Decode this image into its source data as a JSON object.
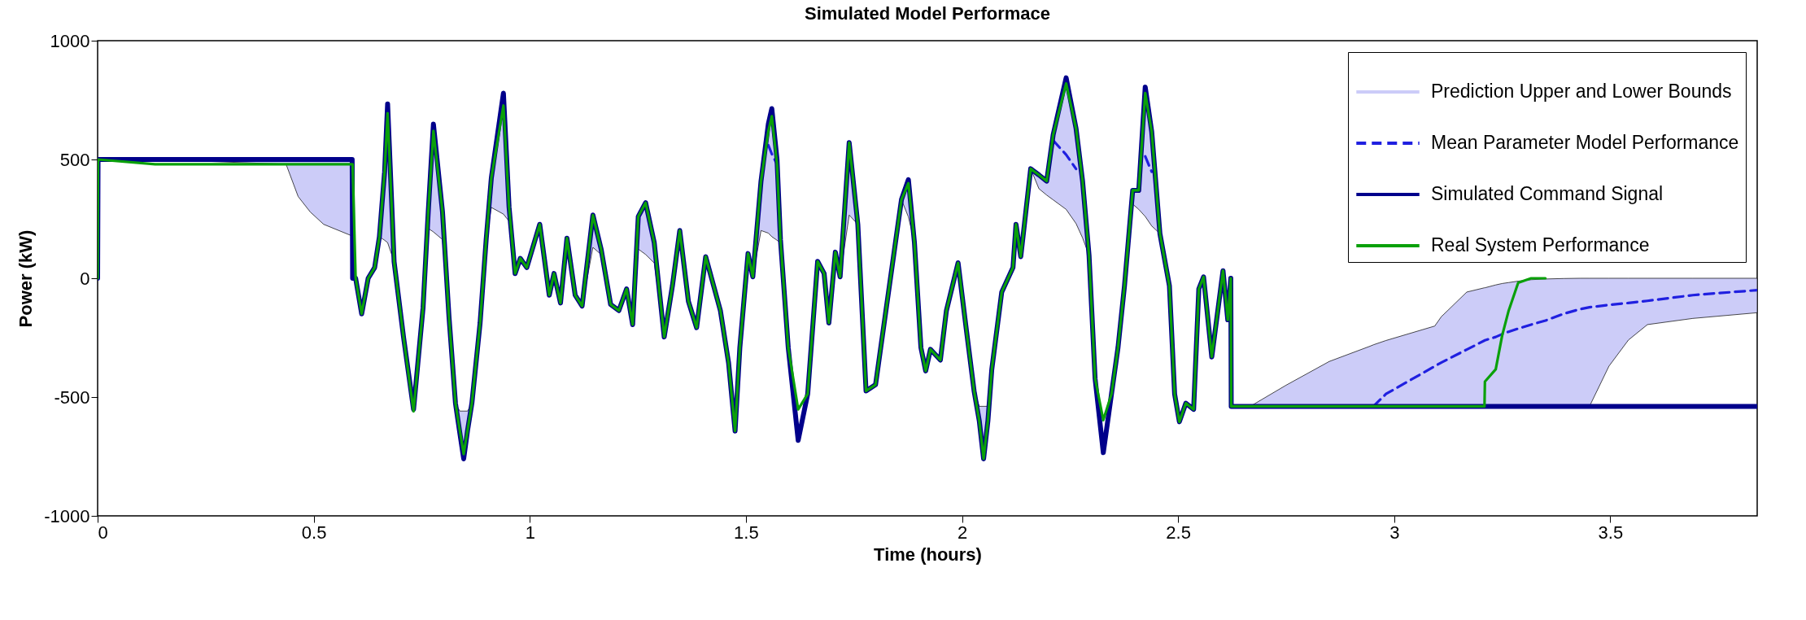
{
  "chart_data": {
    "type": "line",
    "title": "Simulated Model Performace",
    "xlabel": "Time (hours)",
    "ylabel": "Power (kW)",
    "x": [
      0,
      0.001,
      0.133,
      0.436,
      0.464,
      0.492,
      0.523,
      0.589,
      0.59,
      0.597,
      0.611,
      0.626,
      0.641,
      0.652,
      0.664,
      0.671,
      0.686,
      0.708,
      0.731,
      0.753,
      0.765,
      0.777,
      0.798,
      0.813,
      0.828,
      0.838,
      0.847,
      0.856,
      0.866,
      0.885,
      0.899,
      0.911,
      0.939,
      0.952,
      0.966,
      0.978,
      0.993,
      1.023,
      1.045,
      1.056,
      1.071,
      1.086,
      1.105,
      1.121,
      1.146,
      1.165,
      1.187,
      1.206,
      1.224,
      1.238,
      1.251,
      1.268,
      1.288,
      1.311,
      1.33,
      1.347,
      1.367,
      1.386,
      1.407,
      1.441,
      1.46,
      1.475,
      1.486,
      1.505,
      1.516,
      1.535,
      1.552,
      1.56,
      1.572,
      1.58,
      1.598,
      1.621,
      1.643,
      1.666,
      1.681,
      1.692,
      1.707,
      1.718,
      1.739,
      1.759,
      1.778,
      1.8,
      1.822,
      1.86,
      1.876,
      1.89,
      1.905,
      1.916,
      1.927,
      1.95,
      1.964,
      1.991,
      2.009,
      2.028,
      2.04,
      2.05,
      2.06,
      2.069,
      2.092,
      2.118,
      2.125,
      2.136,
      2.159,
      2.178,
      2.196,
      2.211,
      2.241,
      2.264,
      2.279,
      2.294,
      2.308,
      2.327,
      2.346,
      2.361,
      2.376,
      2.395,
      2.409,
      2.424,
      2.439,
      2.458,
      2.48,
      2.492,
      2.503,
      2.518,
      2.536,
      2.548,
      2.559,
      2.578,
      2.604,
      2.615,
      2.622,
      2.623,
      2.667,
      2.75,
      2.85,
      2.944,
      2.952,
      2.981,
      3.094,
      3.109,
      3.168,
      3.209,
      3.21,
      3.235,
      3.25,
      3.265,
      3.287,
      3.317,
      3.35,
      3.393,
      3.43,
      3.452,
      3.497,
      3.542,
      3.586,
      3.691,
      3.84
    ],
    "series": [
      {
        "name": "Prediction Upper and Lower Bounds",
        "type": "area",
        "color": "#ccccf8",
        "values": [
          null,
          null,
          null,
          null,
          null,
          null,
          null,
          null,
          null,
          null,
          null,
          null,
          null,
          null,
          null,
          null,
          null,
          null,
          null,
          null,
          null,
          null,
          null,
          null,
          null,
          null,
          null,
          null,
          null,
          null,
          null,
          null,
          null,
          null,
          null,
          null,
          null,
          null,
          null,
          null,
          null,
          null,
          null,
          null,
          null,
          null,
          null,
          null,
          null,
          null,
          null,
          null,
          null,
          null,
          null,
          null,
          null,
          null,
          null,
          null,
          null,
          null,
          null,
          null,
          null,
          null,
          null,
          null,
          null,
          null,
          null,
          null,
          null,
          null,
          null,
          null,
          null,
          null,
          null,
          null,
          null,
          null,
          null,
          null,
          null,
          null,
          null,
          null,
          null,
          null,
          null,
          null,
          null,
          null,
          null,
          null,
          null,
          null,
          null,
          null,
          null,
          null,
          null,
          null,
          null,
          null,
          null,
          null,
          null,
          null,
          null,
          null,
          null,
          null,
          null,
          null,
          null,
          null,
          null,
          null,
          null,
          null,
          null,
          null,
          null,
          null,
          null,
          null,
          null,
          null,
          null,
          null,
          null,
          null,
          null,
          null,
          null,
          null,
          null,
          null,
          null,
          null,
          null,
          null,
          null,
          null,
          null,
          null,
          null,
          null,
          null,
          null,
          null,
          null,
          null,
          null,
          null
        ],
        "lower": [
          0,
          500,
          500,
          480,
          344,
          279,
          227,
          178,
          0,
          0,
          -150,
          0,
          45,
          175,
          160,
          150,
          70,
          -250,
          -552,
          -124,
          210,
          195,
          163,
          -162,
          -526,
          -650,
          -760,
          -640,
          -526,
          -188,
          162,
          298,
          270,
          240,
          20,
          84,
          45,
          227,
          -71,
          20,
          -104,
          169,
          -71,
          -117,
          130,
          100,
          -110,
          -136,
          -45,
          -195,
          123,
          100,
          64,
          -247,
          -32,
          201,
          -97,
          -208,
          91,
          -136,
          -357,
          -643,
          -292,
          104,
          6,
          201,
          190,
          175,
          160,
          149,
          -292,
          -682,
          -487,
          71,
          20,
          -188,
          110,
          6,
          266,
          227,
          -474,
          -448,
          -162,
          331,
          258,
          150,
          -292,
          -390,
          -299,
          -344,
          -136,
          65,
          -201,
          -474,
          -600,
          -760,
          -600,
          -383,
          -58,
          45,
          227,
          91,
          461,
          377,
          350,
          330,
          290,
          230,
          170,
          97,
          -422,
          -734,
          -487,
          -292,
          -32,
          312,
          290,
          260,
          220,
          188,
          -32,
          -487,
          -604,
          -526,
          -552,
          -45,
          6,
          -331,
          32,
          -175,
          0,
          -539,
          -539,
          -539,
          -539,
          -539,
          -539,
          -539,
          -539,
          -539,
          -539,
          -539,
          -539,
          -539,
          -539,
          -539,
          -539,
          -539,
          -539,
          -539,
          -539,
          -539,
          -370,
          -260,
          -195,
          -169,
          -145
        ],
        "upper": [
          0,
          500,
          500,
          500,
          500,
          500,
          500,
          500,
          0,
          0,
          -150,
          0,
          45,
          175,
          448,
          734,
          70,
          -250,
          -552,
          -124,
          279,
          649,
          279,
          -162,
          -526,
          -559,
          -559,
          -559,
          -526,
          -188,
          162,
          422,
          779,
          300,
          20,
          84,
          45,
          227,
          -71,
          20,
          -104,
          169,
          -71,
          -117,
          266,
          123,
          -110,
          -136,
          -45,
          -195,
          260,
          318,
          149,
          -247,
          -32,
          201,
          -97,
          -208,
          91,
          -136,
          -357,
          -643,
          -292,
          104,
          6,
          409,
          650,
          714,
          500,
          162,
          -292,
          -682,
          -487,
          71,
          20,
          -188,
          110,
          6,
          571,
          227,
          -474,
          -448,
          -162,
          331,
          415,
          150,
          -292,
          -390,
          -299,
          -344,
          -136,
          65,
          -201,
          -474,
          -539,
          -539,
          -539,
          -383,
          -58,
          45,
          227,
          91,
          461,
          435,
          409,
          604,
          844,
          630,
          409,
          97,
          -422,
          -734,
          -487,
          -292,
          -32,
          370,
          370,
          805,
          617,
          188,
          -32,
          -487,
          -604,
          -526,
          -552,
          -45,
          6,
          -331,
          32,
          -175,
          0,
          -539,
          -539,
          -450,
          -350,
          -286,
          -280,
          -262,
          -201,
          -162,
          -58,
          -40,
          -40,
          -28,
          -22,
          -18,
          -12,
          -6,
          -3,
          -1,
          0,
          0,
          0,
          0,
          0,
          0,
          0
        ]
      },
      {
        "name": "Mean Parameter Model Performance",
        "color": "#2020e0",
        "line_style": "dashed",
        "values": [
          null,
          null,
          null,
          null,
          null,
          null,
          null,
          null,
          null,
          null,
          null,
          null,
          null,
          null,
          null,
          null,
          null,
          null,
          null,
          null,
          null,
          null,
          null,
          null,
          null,
          null,
          null,
          null,
          null,
          null,
          null,
          null,
          null,
          null,
          null,
          null,
          null,
          null,
          null,
          null,
          null,
          null,
          null,
          null,
          null,
          null,
          null,
          null,
          null,
          null,
          null,
          null,
          null,
          null,
          null,
          null,
          null,
          null,
          null,
          null,
          null,
          null,
          null,
          null,
          null,
          null,
          560,
          523,
          480,
          null,
          null,
          null,
          null,
          null,
          null,
          null,
          null,
          null,
          null,
          null,
          null,
          null,
          null,
          null,
          null,
          null,
          null,
          null,
          null,
          null,
          null,
          null,
          null,
          null,
          null,
          null,
          null,
          null,
          null,
          null,
          null,
          null,
          null,
          null,
          null,
          580,
          520,
          460,
          null,
          null,
          null,
          null,
          null,
          null,
          null,
          null,
          null,
          513,
          448,
          null,
          null,
          null,
          null,
          null,
          null,
          null,
          null,
          null,
          null,
          null,
          null,
          null,
          null,
          null,
          null,
          null,
          -539,
          -487,
          -370,
          -355,
          -300,
          -262,
          -261,
          -247,
          -235,
          -225,
          -212,
          -195,
          -178,
          -149,
          -130,
          -122,
          -112,
          -104,
          -95,
          -71,
          -50
        ]
      },
      {
        "name": "Simulated Command Signal",
        "color": "#00008b",
        "line_style": "solid",
        "values": [
          0,
          500,
          500,
          500,
          500,
          500,
          500,
          500,
          0,
          0,
          -150,
          0,
          45,
          175,
          448,
          734,
          70,
          -250,
          -552,
          -124,
          279,
          649,
          279,
          -162,
          -526,
          -650,
          -760,
          -640,
          -526,
          -188,
          162,
          422,
          779,
          300,
          20,
          84,
          45,
          227,
          -71,
          20,
          -104,
          169,
          -71,
          -117,
          266,
          123,
          -110,
          -136,
          -45,
          -195,
          260,
          318,
          149,
          -247,
          -32,
          201,
          -97,
          -208,
          91,
          -136,
          -357,
          -643,
          -292,
          104,
          6,
          409,
          650,
          714,
          500,
          162,
          -292,
          -682,
          -487,
          71,
          20,
          -188,
          110,
          6,
          571,
          227,
          -474,
          -448,
          -162,
          331,
          415,
          150,
          -292,
          -390,
          -299,
          -344,
          -136,
          65,
          -201,
          -474,
          -600,
          -760,
          -600,
          -383,
          -58,
          45,
          227,
          91,
          461,
          435,
          409,
          604,
          844,
          630,
          409,
          97,
          -422,
          -734,
          -487,
          -292,
          -32,
          370,
          370,
          805,
          617,
          188,
          -32,
          -487,
          -604,
          -526,
          -552,
          -45,
          6,
          -331,
          32,
          -175,
          0,
          -539,
          -539,
          -539,
          -539,
          -539,
          -539,
          -539,
          -539,
          -539,
          -539,
          -539,
          -539,
          -539,
          -539,
          -539,
          -539,
          -539,
          -539,
          -539,
          -539,
          -539,
          -539,
          -539,
          -539,
          -539,
          -539
        ]
      },
      {
        "name": "Real System Performance",
        "color": "#0aa00a",
        "line_style": "solid",
        "values": [
          0,
          500,
          480,
          480,
          480,
          480,
          480,
          480,
          480,
          0,
          -150,
          0,
          45,
          175,
          448,
          695,
          70,
          -250,
          -560,
          -124,
          279,
          620,
          279,
          -162,
          -526,
          -640,
          -740,
          -640,
          -526,
          -188,
          162,
          422,
          727,
          300,
          20,
          84,
          45,
          227,
          -71,
          20,
          -104,
          169,
          -71,
          -117,
          266,
          123,
          -110,
          -136,
          -45,
          -195,
          260,
          318,
          149,
          -247,
          -32,
          201,
          -97,
          -208,
          91,
          -136,
          -357,
          -643,
          -292,
          104,
          6,
          409,
          620,
          682,
          480,
          162,
          -292,
          -552,
          -487,
          71,
          20,
          -188,
          110,
          6,
          571,
          227,
          -474,
          -448,
          -162,
          331,
          400,
          150,
          -292,
          -390,
          -299,
          -344,
          -136,
          65,
          -201,
          -474,
          -600,
          -760,
          -600,
          -383,
          -58,
          45,
          227,
          91,
          461,
          435,
          409,
          604,
          820,
          630,
          409,
          97,
          -422,
          -597,
          -487,
          -292,
          -32,
          370,
          370,
          780,
          617,
          188,
          -32,
          -487,
          -604,
          -526,
          -552,
          -45,
          6,
          -331,
          32,
          -175,
          0,
          -539,
          -539,
          -539,
          -539,
          -539,
          -539,
          -539,
          -539,
          -539,
          -539,
          -539,
          -435,
          -383,
          -240,
          -136,
          -19,
          0,
          0,
          null,
          null,
          null,
          null,
          null,
          null,
          null,
          null
        ]
      }
    ],
    "xlim": [
      0,
      3.84
    ],
    "xticks": [
      0,
      0.5,
      1,
      1.5,
      2,
      2.5,
      3,
      3.5
    ],
    "ylim": [
      -1000,
      1000
    ],
    "yticks": [
      -1000,
      -500,
      0,
      500,
      1000
    ],
    "legend": "top right"
  }
}
